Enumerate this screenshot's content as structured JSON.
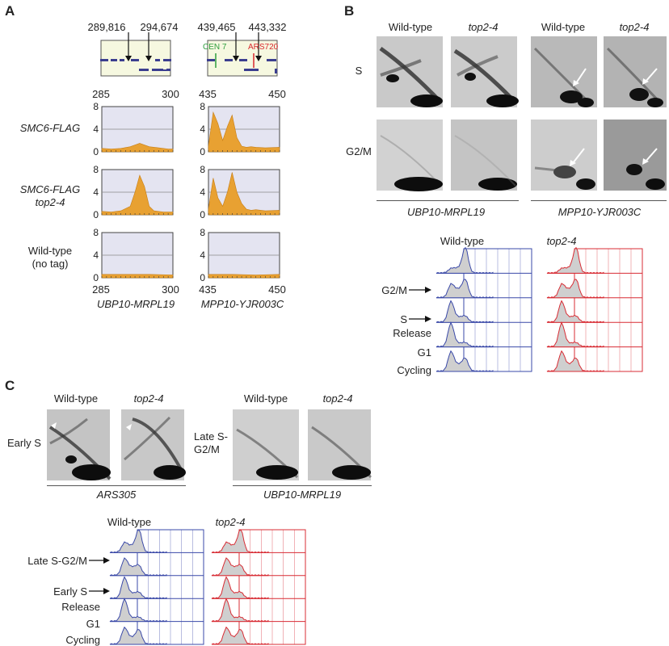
{
  "figure": {
    "panel_a": {
      "letter": "A",
      "locus_left": {
        "marker_labels": [
          "289,816",
          "294,674"
        ],
        "axis_ticks": [
          "285",
          "300"
        ],
        "name": "UBP10-MRPL19"
      },
      "locus_right": {
        "marker_labels": [
          "439,465",
          "443,332"
        ],
        "feature_labels": [
          "CEN 7",
          "ARS720"
        ],
        "axis_ticks": [
          "435",
          "450"
        ],
        "name": "MPP10-YJR003C"
      },
      "y_ticks": [
        "8",
        "4",
        "0"
      ],
      "row_labels": [
        {
          "line1": "SMC6-FLAG",
          "line2": "",
          "italic": true
        },
        {
          "line1": "SMC6-FLAG",
          "line2": "top2-4",
          "italic": true
        },
        {
          "line1": "Wild-type",
          "line2": "(no tag)",
          "italic": false
        }
      ]
    },
    "panel_b": {
      "letter": "B",
      "column_labels": [
        "Wild-type",
        "top2-4",
        "Wild-type",
        "top2-4"
      ],
      "row_labels": [
        "S",
        "G2/M"
      ],
      "locus_labels": [
        "UBP10-MRPL19",
        "MPP10-YJR003C"
      ],
      "facs": {
        "column_labels": [
          "Wild-type",
          "top2-4"
        ],
        "row_labels": [
          "G2/M",
          "S",
          "Release",
          "G1",
          "Cycling"
        ],
        "arrow_rows": [
          "G2/M",
          "S"
        ]
      }
    },
    "panel_c": {
      "letter": "C",
      "column_labels": [
        "Wild-type",
        "top2-4",
        "Wild-type",
        "top2-4"
      ],
      "row_labels_left": [
        "Early S"
      ],
      "row_labels_right": [
        "Late S-",
        "G2/M"
      ],
      "locus_labels": [
        "ARS305",
        "UBP10-MRPL19"
      ],
      "facs": {
        "column_labels": [
          "Wild-type",
          "top2-4"
        ],
        "row_labels": [
          "Late S-G2/M",
          "Early S",
          "Release",
          "G1",
          "Cycling"
        ],
        "arrow_rows": [
          "Late S-G2/M",
          "Early S"
        ]
      }
    }
  },
  "chart_data": [
    {
      "type": "area",
      "id": "smc6-ubp10",
      "xlim": [
        285,
        300
      ],
      "ylim": [
        0,
        8
      ],
      "x": [
        285,
        287,
        289,
        291,
        293,
        295,
        297,
        299,
        300
      ],
      "series": [
        {
          "values": [
            0.6,
            0.5,
            0.6,
            0.9,
            1.5,
            0.9,
            0.7,
            0.5,
            0.5
          ]
        }
      ]
    },
    {
      "type": "area",
      "id": "smc6-mpp10",
      "xlim": [
        435,
        450
      ],
      "ylim": [
        0,
        8
      ],
      "x": [
        435,
        436,
        437,
        438,
        439,
        440,
        441,
        442,
        443,
        444,
        445,
        447,
        450
      ],
      "series": [
        {
          "values": [
            1.0,
            7.0,
            5.0,
            2.0,
            4.5,
            6.5,
            2.5,
            1.0,
            0.8,
            0.9,
            0.8,
            0.7,
            0.8
          ]
        }
      ]
    },
    {
      "type": "area",
      "id": "smc6-top2-ubp10",
      "xlim": [
        285,
        300
      ],
      "ylim": [
        0,
        8
      ],
      "x": [
        285,
        287,
        289,
        291,
        292,
        293,
        294,
        295,
        296,
        298,
        300
      ],
      "series": [
        {
          "values": [
            0.6,
            0.5,
            0.7,
            1.5,
            4.0,
            7.0,
            5.0,
            1.5,
            0.7,
            0.5,
            0.5
          ]
        }
      ]
    },
    {
      "type": "area",
      "id": "smc6-top2-mpp10",
      "xlim": [
        435,
        450
      ],
      "ylim": [
        0,
        8
      ],
      "x": [
        435,
        436,
        437,
        438,
        439,
        440,
        441,
        442,
        443,
        444,
        445,
        447,
        450
      ],
      "series": [
        {
          "values": [
            1.0,
            6.5,
            3.0,
            1.5,
            4.0,
            7.5,
            4.0,
            2.0,
            1.0,
            0.8,
            0.9,
            0.7,
            0.8
          ]
        }
      ]
    },
    {
      "type": "area",
      "id": "wt-ubp10",
      "xlim": [
        285,
        300
      ],
      "ylim": [
        0,
        8
      ],
      "x": [
        285,
        290,
        295,
        300
      ],
      "series": [
        {
          "values": [
            0.6,
            0.6,
            0.6,
            0.5
          ]
        }
      ]
    },
    {
      "type": "area",
      "id": "wt-mpp10",
      "xlim": [
        435,
        450
      ],
      "ylim": [
        0,
        8
      ],
      "x": [
        435,
        440,
        445,
        450
      ],
      "series": [
        {
          "values": [
            0.6,
            0.6,
            0.5,
            0.6
          ]
        }
      ]
    }
  ],
  "colors": {
    "chip_fill": "#E8A132",
    "chip_bg": "#E4E4F1",
    "locus_bg": "#F6F8E0",
    "gene_blue": "#3B3E8F",
    "cen_green": "#2E9E3E",
    "ars_red": "#D9272E",
    "facs_wt": "#3A49A8",
    "facs_top2": "#D82C34"
  }
}
